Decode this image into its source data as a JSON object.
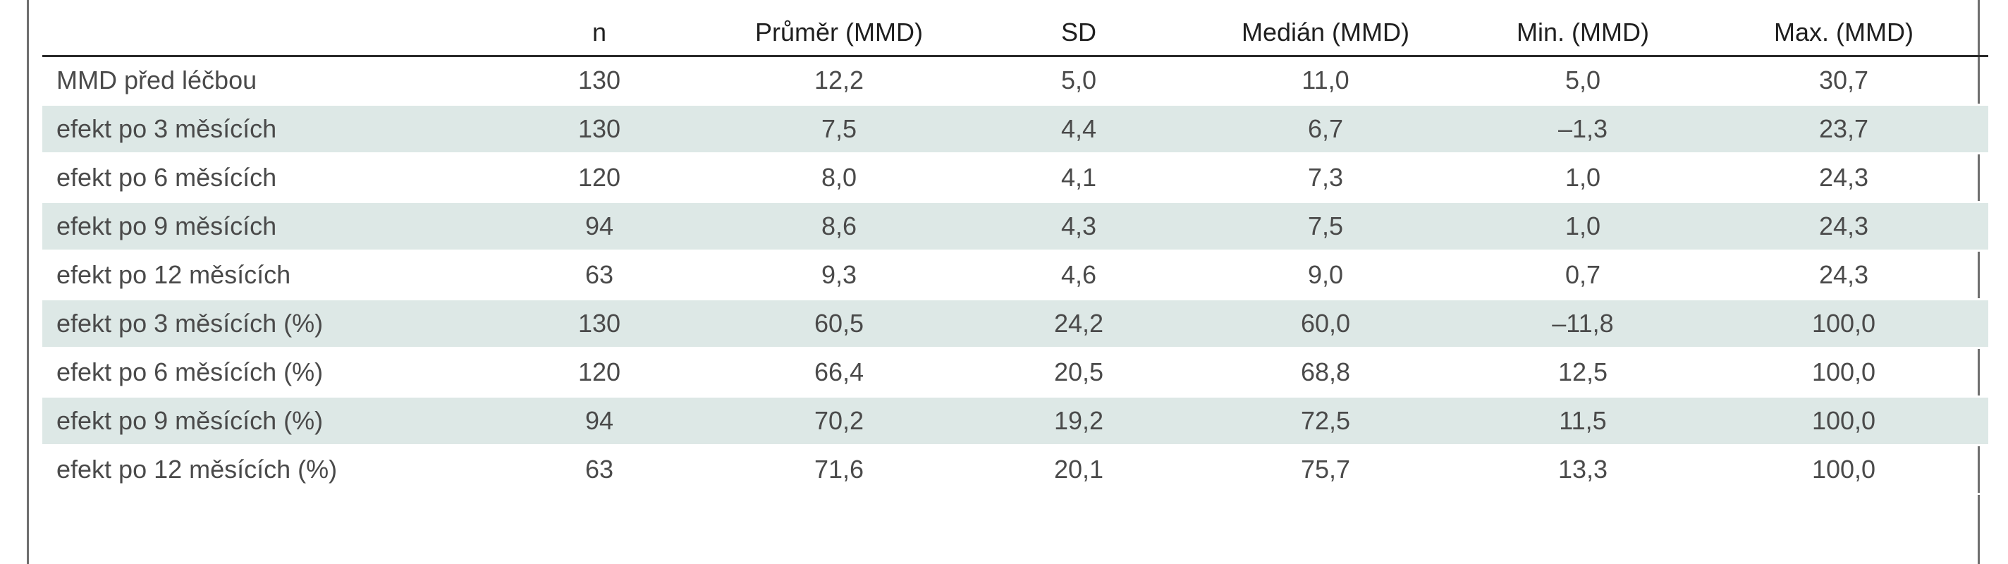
{
  "table": {
    "headers": [
      "",
      "n",
      "Průměr (MMD)",
      "SD",
      "Medián (MMD)",
      "Min. (MMD)",
      "Max. (MMD)"
    ],
    "rows": [
      {
        "label": "MMD před léčbou",
        "n": "130",
        "mean": "12,2",
        "sd": "5,0",
        "median": "11,0",
        "min": "5,0",
        "max": "30,7"
      },
      {
        "label": "efekt po 3 měsících",
        "n": "130",
        "mean": "7,5",
        "sd": "4,4",
        "median": "6,7",
        "min": "–1,3",
        "max": "23,7"
      },
      {
        "label": "efekt po 6 měsících",
        "n": "120",
        "mean": "8,0",
        "sd": "4,1",
        "median": "7,3",
        "min": "1,0",
        "max": "24,3"
      },
      {
        "label": "efekt po 9 měsících",
        "n": "94",
        "mean": "8,6",
        "sd": "4,3",
        "median": "7,5",
        "min": "1,0",
        "max": "24,3"
      },
      {
        "label": "efekt po 12 měsících",
        "n": "63",
        "mean": "9,3",
        "sd": "4,6",
        "median": "9,0",
        "min": "0,7",
        "max": "24,3"
      },
      {
        "label": "efekt po 3 měsících (%)",
        "n": "130",
        "mean": "60,5",
        "sd": "24,2",
        "median": "60,0",
        "min": "–11,8",
        "max": "100,0"
      },
      {
        "label": "efekt po 6 měsících (%)",
        "n": "120",
        "mean": "66,4",
        "sd": "20,5",
        "median": "68,8",
        "min": "12,5",
        "max": "100,0"
      },
      {
        "label": "efekt po 9 měsících (%)",
        "n": "94",
        "mean": "70,2",
        "sd": "19,2",
        "median": "72,5",
        "min": "11,5",
        "max": "100,0"
      },
      {
        "label": "efekt po 12 měsících (%)",
        "n": "63",
        "mean": "71,6",
        "sd": "20,1",
        "median": "75,7",
        "min": "13,3",
        "max": "100,0"
      }
    ]
  },
  "colors": {
    "shaded_row": "#dde8e6",
    "header_rule": "#2a2a2a",
    "frame": "#6f6f6f"
  }
}
